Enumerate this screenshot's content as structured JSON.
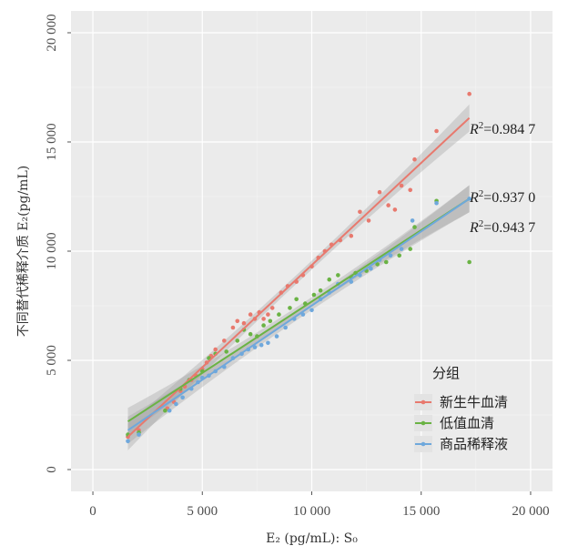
{
  "chart_data": {
    "type": "scatter",
    "xlabel": "E₂ (pg/mL): S₀",
    "ylabel": "不同替代稀释介质 E₂(pg/mL)",
    "xlim": [
      -1000,
      21000
    ],
    "ylim": [
      -1000,
      21000
    ],
    "x_ticks": [
      0,
      5000,
      10000,
      15000,
      20000
    ],
    "y_ticks": [
      0,
      5000,
      10000,
      15000,
      20000
    ],
    "x_tick_labels": [
      "0",
      "5 000",
      "10 000",
      "15 000",
      "20 000"
    ],
    "y_tick_labels": [
      "0",
      "5 000",
      "10 000",
      "15 000",
      "20 000"
    ],
    "grid": true,
    "legend": {
      "title": "分组",
      "position": "right",
      "entries": [
        "新生牛血清",
        "低值血清",
        "商品稀释液"
      ]
    },
    "series": [
      {
        "name": "新生牛血清",
        "color": "#E8796E",
        "r2_label": "=0.984 7",
        "fit": {
          "x": [
            1600,
            17200
          ],
          "y": [
            1500,
            16100
          ]
        },
        "points": [
          [
            1600,
            1500
          ],
          [
            2100,
            1800
          ],
          [
            3400,
            2800
          ],
          [
            3700,
            3100
          ],
          [
            4000,
            3600
          ],
          [
            4200,
            3800
          ],
          [
            4500,
            4100
          ],
          [
            4700,
            4300
          ],
          [
            5000,
            4600
          ],
          [
            5200,
            4900
          ],
          [
            5400,
            5200
          ],
          [
            5600,
            5500
          ],
          [
            6000,
            5900
          ],
          [
            6400,
            6500
          ],
          [
            6600,
            6800
          ],
          [
            6900,
            6700
          ],
          [
            7200,
            7100
          ],
          [
            7400,
            6900
          ],
          [
            7600,
            7200
          ],
          [
            7800,
            6900
          ],
          [
            8000,
            7100
          ],
          [
            8200,
            7400
          ],
          [
            8600,
            8100
          ],
          [
            8900,
            8400
          ],
          [
            9300,
            8600
          ],
          [
            9600,
            8900
          ],
          [
            10000,
            9300
          ],
          [
            10300,
            9700
          ],
          [
            10600,
            10000
          ],
          [
            10900,
            10300
          ],
          [
            11300,
            10500
          ],
          [
            11800,
            10700
          ],
          [
            12200,
            11800
          ],
          [
            12600,
            11400
          ],
          [
            13100,
            12700
          ],
          [
            13500,
            12100
          ],
          [
            13800,
            11900
          ],
          [
            14100,
            13000
          ],
          [
            14500,
            12800
          ],
          [
            14700,
            14200
          ],
          [
            15700,
            15500
          ],
          [
            17200,
            17200
          ]
        ]
      },
      {
        "name": "低值血清",
        "color": "#6AB344",
        "r2_label": "=0.937 0",
        "fit": {
          "x": [
            1600,
            17200
          ],
          "y": [
            2200,
            12400
          ]
        },
        "points": [
          [
            1600,
            1600
          ],
          [
            2100,
            1700
          ],
          [
            3300,
            2700
          ],
          [
            4000,
            3700
          ],
          [
            4400,
            4100
          ],
          [
            5000,
            4500
          ],
          [
            5300,
            5100
          ],
          [
            5600,
            5300
          ],
          [
            6100,
            5400
          ],
          [
            6600,
            5900
          ],
          [
            6900,
            6400
          ],
          [
            7200,
            6200
          ],
          [
            7500,
            6100
          ],
          [
            7800,
            6600
          ],
          [
            8100,
            6800
          ],
          [
            8500,
            7100
          ],
          [
            9000,
            7400
          ],
          [
            9300,
            7800
          ],
          [
            9700,
            7600
          ],
          [
            10100,
            8000
          ],
          [
            10400,
            8200
          ],
          [
            10800,
            8700
          ],
          [
            11200,
            8900
          ],
          [
            11800,
            8800
          ],
          [
            12000,
            9000
          ],
          [
            12500,
            9100
          ],
          [
            13000,
            9400
          ],
          [
            13400,
            9500
          ],
          [
            14000,
            9800
          ],
          [
            14500,
            10100
          ],
          [
            14700,
            11100
          ],
          [
            15700,
            12300
          ],
          [
            17200,
            9500
          ]
        ]
      },
      {
        "name": "商品稀释液",
        "color": "#6FA8DC",
        "r2_label": "=0.943 7",
        "fit": {
          "x": [
            1600,
            17200
          ],
          "y": [
            1800,
            12400
          ]
        },
        "points": [
          [
            1600,
            1300
          ],
          [
            2100,
            1600
          ],
          [
            3500,
            2700
          ],
          [
            3800,
            3000
          ],
          [
            4100,
            3300
          ],
          [
            4500,
            3700
          ],
          [
            4800,
            4000
          ],
          [
            5000,
            4200
          ],
          [
            5300,
            4300
          ],
          [
            5600,
            4500
          ],
          [
            6000,
            4700
          ],
          [
            6400,
            5100
          ],
          [
            6800,
            5300
          ],
          [
            7100,
            5500
          ],
          [
            7400,
            5600
          ],
          [
            7700,
            5700
          ],
          [
            8000,
            5800
          ],
          [
            8400,
            6100
          ],
          [
            8800,
            6500
          ],
          [
            9200,
            6900
          ],
          [
            9600,
            7100
          ],
          [
            10000,
            7300
          ],
          [
            10400,
            7800
          ],
          [
            10800,
            8100
          ],
          [
            11200,
            8500
          ],
          [
            11800,
            8600
          ],
          [
            12200,
            8900
          ],
          [
            12700,
            9200
          ],
          [
            13100,
            9600
          ],
          [
            13600,
            9800
          ],
          [
            14100,
            10100
          ],
          [
            14600,
            11400
          ],
          [
            15700,
            12200
          ],
          [
            17200,
            12400
          ]
        ]
      }
    ]
  }
}
